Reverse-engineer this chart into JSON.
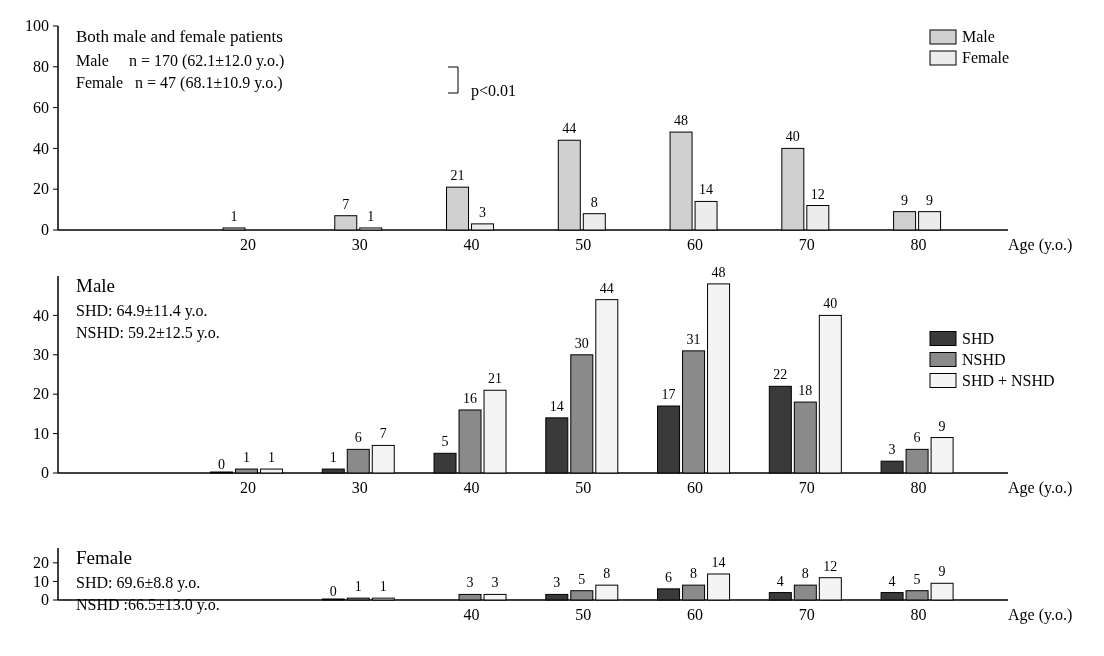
{
  "chart_data": [
    {
      "type": "bar",
      "title": "Both male and female patients",
      "xlabel": "Age (y.o.)",
      "x": [
        20,
        30,
        40,
        50,
        60,
        70,
        80
      ],
      "xlim": [
        3,
        88
      ],
      "xticks": [
        20,
        30,
        40,
        50,
        60,
        70,
        80
      ],
      "series": [
        {
          "name": "Male",
          "color": "#d0d0d0",
          "values": [
            1,
            7,
            21,
            44,
            48,
            40,
            9
          ]
        },
        {
          "name": "Female",
          "color": "#ececec",
          "values": [
            null,
            1,
            3,
            8,
            14,
            12,
            9
          ]
        }
      ],
      "ylim": [
        0,
        100
      ],
      "yticks": [
        0,
        20,
        40,
        60,
        80,
        100
      ],
      "data_labels": true,
      "legend": "top right",
      "annotations": [
        "Male     n = 170 (62.1±12.0 y.o.)",
        "Female   n = 47 (68.1±10.9 y.o.)",
        "p<0.01"
      ]
    },
    {
      "type": "bar",
      "title": "Male",
      "xlabel": "Age (y.o.)",
      "x": [
        20,
        30,
        40,
        50,
        60,
        70,
        80
      ],
      "xlim": [
        3,
        88
      ],
      "xticks": [
        20,
        30,
        40,
        50,
        60,
        70,
        80
      ],
      "series": [
        {
          "name": "SHD",
          "color": "#3a3a3a",
          "values": [
            0,
            1,
            5,
            14,
            17,
            22,
            3
          ]
        },
        {
          "name": "NSHD",
          "color": "#8a8a8a",
          "values": [
            1,
            6,
            16,
            30,
            31,
            18,
            6
          ]
        },
        {
          "name": "SHD + NSHD",
          "color": "#f4f4f4",
          "values": [
            1,
            7,
            21,
            44,
            48,
            40,
            9
          ]
        }
      ],
      "ylim": [
        0,
        50
      ],
      "yticks": [
        0,
        10,
        20,
        30,
        40
      ],
      "data_labels": true,
      "legend": "right",
      "annotations": [
        "SHD: 64.9±11.4 y.o.",
        "NSHD: 59.2±12.5 y.o."
      ]
    },
    {
      "type": "bar",
      "title": "Female",
      "xlabel": "Age (y.o.)",
      "x": [
        30,
        40,
        50,
        60,
        70,
        80
      ],
      "xlim": [
        3,
        88
      ],
      "xticks": [
        40,
        50,
        60,
        70,
        80
      ],
      "series": [
        {
          "color": "#3a3a3a",
          "values": [
            0,
            null,
            3,
            6,
            4,
            4
          ]
        },
        {
          "color": "#8a8a8a",
          "values": [
            1,
            3,
            5,
            8,
            8,
            5
          ]
        },
        {
          "color": "#f4f4f4",
          "values": [
            1,
            3,
            8,
            14,
            12,
            9
          ]
        }
      ],
      "ylim": [
        0,
        28
      ],
      "yticks": [
        0,
        10,
        20
      ],
      "data_labels": true,
      "annotations": [
        "SHD: 69.6±8.8 y.o.",
        "NSHD :66.5±13.0 y.o."
      ]
    }
  ]
}
